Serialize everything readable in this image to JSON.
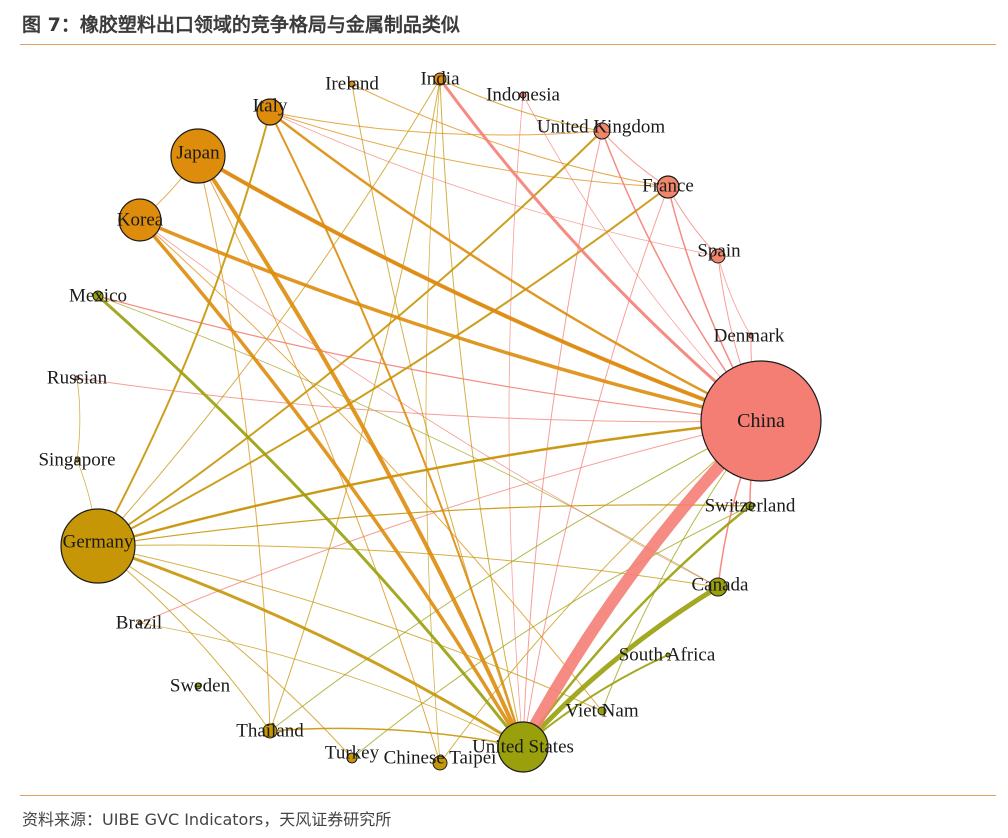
{
  "header": {
    "title": "图 7：橡胶塑料出口领域的竞争格局与金属制品类似"
  },
  "footer": {
    "source": "资料来源：UIBE GVC Indicators，天风证券研究所"
  },
  "colors": {
    "rule": "#e0a060",
    "salmon": "#f47e74",
    "orange": "#dd8c0c",
    "gold": "#c69606",
    "olive": "#9aa00c"
  },
  "nodes": [
    {
      "id": "india",
      "label": "India",
      "color": "#dd8c0c"
    },
    {
      "id": "ireland",
      "label": "Ireland",
      "color": "#dd8c0c"
    },
    {
      "id": "indonesia",
      "label": "Indonesia",
      "color": "#f47e74"
    },
    {
      "id": "italy",
      "label": "Italy",
      "color": "#dd8c0c"
    },
    {
      "id": "uk",
      "label": "United Kingdom",
      "color": "#f0876a"
    },
    {
      "id": "japan",
      "label": "Japan",
      "color": "#dd8c0c"
    },
    {
      "id": "france",
      "label": "France",
      "color": "#f0876a"
    },
    {
      "id": "korea",
      "label": "Korea",
      "color": "#dd8c0c"
    },
    {
      "id": "spain",
      "label": "Spain",
      "color": "#f0876a"
    },
    {
      "id": "mexico",
      "label": "Mexico",
      "color": "#9aa00c"
    },
    {
      "id": "denmark",
      "label": "Denmark",
      "color": "#f47e74"
    },
    {
      "id": "russian",
      "label": "Russian",
      "color": "#f47e74"
    },
    {
      "id": "china",
      "label": "China",
      "color": "#f47e74"
    },
    {
      "id": "singapore",
      "label": "Singapore",
      "color": "#c69606"
    },
    {
      "id": "switzerland",
      "label": "Switzerland",
      "color": "#9aa00c"
    },
    {
      "id": "germany",
      "label": "Germany",
      "color": "#c69606"
    },
    {
      "id": "canada",
      "label": "Canada",
      "color": "#9aa00c"
    },
    {
      "id": "brazil",
      "label": "Brazil",
      "color": "#c69606"
    },
    {
      "id": "southafrica",
      "label": "South Africa",
      "color": "#9aa00c"
    },
    {
      "id": "sweden",
      "label": "Sweden",
      "color": "#9aa00c"
    },
    {
      "id": "vietnam",
      "label": "Viet Nam",
      "color": "#9aa00c"
    },
    {
      "id": "thailand",
      "label": "Thailand",
      "color": "#c69606"
    },
    {
      "id": "us",
      "label": "United States",
      "color": "#9aa00c"
    },
    {
      "id": "turkey",
      "label": "Turkey",
      "color": "#c69606"
    },
    {
      "id": "chinesetaipei",
      "label": "Chinese Taipei",
      "color": "#c69606"
    }
  ],
  "edges": [
    {
      "from": "china",
      "to": "us",
      "weight": 12,
      "color": "#f47e74"
    },
    {
      "from": "canada",
      "to": "us",
      "weight": 5,
      "color": "#9aa00c"
    },
    {
      "from": "japan",
      "to": "china",
      "weight": 4,
      "color": "#dd8c0c"
    },
    {
      "from": "japan",
      "to": "us",
      "weight": 4,
      "color": "#dd8c0c"
    },
    {
      "from": "korea",
      "to": "china",
      "weight": 3.5,
      "color": "#dd8c0c"
    },
    {
      "from": "korea",
      "to": "us",
      "weight": 3.5,
      "color": "#dd8c0c"
    },
    {
      "from": "germany",
      "to": "us",
      "weight": 3,
      "color": "#c69606"
    },
    {
      "from": "mexico",
      "to": "us",
      "weight": 3,
      "color": "#9aa00c"
    },
    {
      "from": "india",
      "to": "china",
      "weight": 3,
      "color": "#f47e74"
    },
    {
      "from": "italy",
      "to": "china",
      "weight": 2.5,
      "color": "#dd8c0c"
    },
    {
      "from": "japan",
      "to": "china",
      "weight": 2.5,
      "color": "#f47e74"
    },
    {
      "from": "germany",
      "to": "china",
      "weight": 2.5,
      "color": "#c69606"
    },
    {
      "from": "germany",
      "to": "france",
      "weight": 2,
      "color": "#c69606"
    },
    {
      "from": "germany",
      "to": "uk",
      "weight": 2,
      "color": "#c69606"
    },
    {
      "from": "germany",
      "to": "italy",
      "weight": 2,
      "color": "#c69606"
    },
    {
      "from": "italy",
      "to": "us",
      "weight": 2,
      "color": "#dd8c0c"
    },
    {
      "from": "switzerland",
      "to": "us",
      "weight": 2.5,
      "color": "#9aa00c"
    },
    {
      "from": "southafrica",
      "to": "us",
      "weight": 2,
      "color": "#9aa00c"
    },
    {
      "from": "mexico",
      "to": "china",
      "weight": 1.2,
      "color": "#f47e74"
    },
    {
      "from": "germany",
      "to": "switzerland",
      "weight": 1.2,
      "color": "#c69606"
    },
    {
      "from": "germany",
      "to": "canada",
      "weight": 1,
      "color": "#c69606"
    },
    {
      "from": "france",
      "to": "china",
      "weight": 1.5,
      "color": "#f47e74"
    },
    {
      "from": "uk",
      "to": "china",
      "weight": 1.5,
      "color": "#f47e74"
    },
    {
      "from": "spain",
      "to": "china",
      "weight": 1,
      "color": "#f47e74"
    },
    {
      "from": "denmark",
      "to": "china",
      "weight": 1,
      "color": "#f47e74"
    },
    {
      "from": "china",
      "to": "switzerland",
      "weight": 1.5,
      "color": "#f47e74"
    },
    {
      "from": "china",
      "to": "canada",
      "weight": 1.5,
      "color": "#f47e74"
    },
    {
      "from": "brazil",
      "to": "china",
      "weight": 1,
      "color": "#f47e74"
    },
    {
      "from": "russian",
      "to": "china",
      "weight": 1,
      "color": "#f47e74"
    },
    {
      "from": "germany",
      "to": "china",
      "weight": 1.2,
      "color": "#f47e74"
    },
    {
      "from": "india",
      "to": "us",
      "weight": 1,
      "color": "#c69606"
    },
    {
      "from": "india",
      "to": "thailand",
      "weight": 1,
      "color": "#c69606"
    },
    {
      "from": "india",
      "to": "germany",
      "weight": 1,
      "color": "#c69606"
    },
    {
      "from": "ireland",
      "to": "us",
      "weight": 1,
      "color": "#c69606"
    },
    {
      "from": "ireland",
      "to": "france",
      "weight": 1,
      "color": "#dd8c0c"
    },
    {
      "from": "italy",
      "to": "france",
      "weight": 1,
      "color": "#dd8c0c"
    },
    {
      "from": "italy",
      "to": "uk",
      "weight": 1,
      "color": "#dd8c0c"
    },
    {
      "from": "italy",
      "to": "spain",
      "weight": 0.8,
      "color": "#f47e74"
    },
    {
      "from": "japan",
      "to": "thailand",
      "weight": 1,
      "color": "#dd8c0c"
    },
    {
      "from": "japan",
      "to": "chinesetaipei",
      "weight": 1,
      "color": "#dd8c0c"
    },
    {
      "from": "korea",
      "to": "vietnam",
      "weight": 1,
      "color": "#dd8c0c"
    },
    {
      "from": "korea",
      "to": "japan",
      "weight": 1,
      "color": "#dd8c0c"
    },
    {
      "from": "germany",
      "to": "vietnam",
      "weight": 1,
      "color": "#c69606"
    },
    {
      "from": "germany",
      "to": "thailand",
      "weight": 1,
      "color": "#c69606"
    },
    {
      "from": "thailand",
      "to": "us",
      "weight": 1.5,
      "color": "#c69606"
    },
    {
      "from": "thailand",
      "to": "china",
      "weight": 1,
      "color": "#9aa00c"
    },
    {
      "from": "chinesetaipei",
      "to": "china",
      "weight": 1,
      "color": "#c69606"
    },
    {
      "from": "turkey",
      "to": "germany",
      "weight": 1,
      "color": "#c69606"
    },
    {
      "from": "uk",
      "to": "us",
      "weight": 1,
      "color": "#f47e74"
    },
    {
      "from": "france",
      "to": "us",
      "weight": 1,
      "color": "#f47e74"
    },
    {
      "from": "france",
      "to": "spain",
      "weight": 1,
      "color": "#f47e74"
    },
    {
      "from": "uk",
      "to": "france",
      "weight": 1,
      "color": "#f47e74"
    },
    {
      "from": "indonesia",
      "to": "china",
      "weight": 0.8,
      "color": "#f47e74"
    },
    {
      "from": "indonesia",
      "to": "us",
      "weight": 0.8,
      "color": "#f47e74"
    },
    {
      "from": "india",
      "to": "uk",
      "weight": 1,
      "color": "#c69606"
    },
    {
      "from": "india",
      "to": "chinesetaipei",
      "weight": 0.8,
      "color": "#c69606"
    },
    {
      "from": "singapore",
      "to": "russian",
      "weight": 0.8,
      "color": "#c69606"
    },
    {
      "from": "singapore",
      "to": "germany",
      "weight": 0.8,
      "color": "#c69606"
    },
    {
      "from": "switzerland",
      "to": "turkey",
      "weight": 1,
      "color": "#9aa00c"
    },
    {
      "from": "vietnam",
      "to": "china",
      "weight": 1,
      "color": "#9aa00c"
    },
    {
      "from": "spain",
      "to": "denmark",
      "weight": 0.8,
      "color": "#f47e74"
    },
    {
      "from": "brazil",
      "to": "us",
      "weight": 0.8,
      "color": "#c69606"
    },
    {
      "from": "mexico",
      "to": "canada",
      "weight": 0.8,
      "color": "#9aa00c"
    },
    {
      "from": "korea",
      "to": "canada",
      "weight": 0.8,
      "color": "#f47e74"
    }
  ]
}
